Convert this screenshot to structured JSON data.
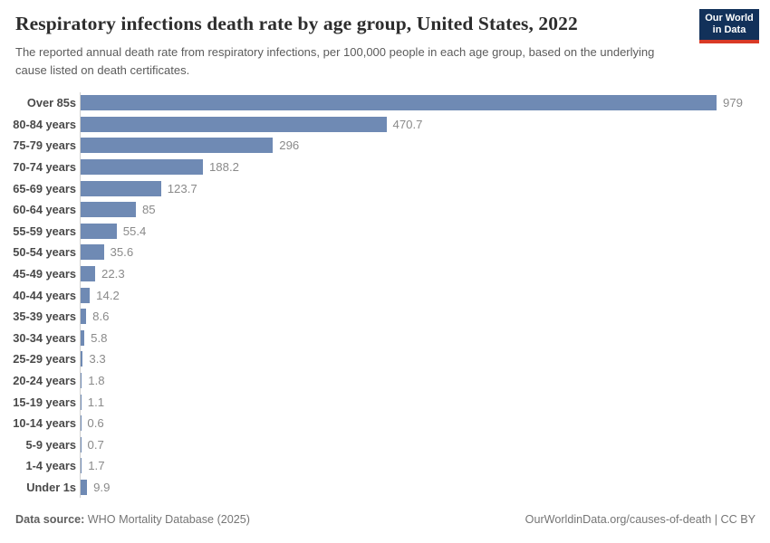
{
  "header": {
    "title": "Respiratory infections death rate by age group, United States, 2022",
    "subtitle": "The reported annual death rate from respiratory infections, per 100,000 people in each age group, based on the underlying cause listed on death certificates.",
    "logo": {
      "line1": "Our World",
      "line2": "in Data",
      "bg_color": "#12315a",
      "accent_color": "#d93a26"
    }
  },
  "chart_data": {
    "type": "bar",
    "orientation": "horizontal",
    "title": "Respiratory infections death rate by age group, United States, 2022",
    "xlabel": "",
    "ylabel": "Age group",
    "xlim": [
      0,
      979
    ],
    "grid": false,
    "legend": "none",
    "bar_color": "#6f8ab4",
    "axis_line_color": "#cfcfcf",
    "categories": [
      "Over 85s",
      "80-84 years",
      "75-79 years",
      "70-74 years",
      "65-69 years",
      "60-64 years",
      "55-59 years",
      "50-54 years",
      "45-49 years",
      "40-44 years",
      "35-39 years",
      "30-34 years",
      "25-29 years",
      "20-24 years",
      "15-19 years",
      "10-14 years",
      "5-9 years",
      "1-4 years",
      "Under 1s"
    ],
    "values": [
      979,
      470.7,
      296,
      188.2,
      123.7,
      85,
      55.4,
      35.6,
      22.3,
      14.2,
      8.6,
      5.8,
      3.3,
      1.8,
      1.1,
      0.6,
      0.7,
      1.7,
      9.9
    ],
    "value_labels": [
      "979",
      "470.7",
      "296",
      "188.2",
      "123.7",
      "85",
      "55.4",
      "35.6",
      "22.3",
      "14.2",
      "8.6",
      "5.8",
      "3.3",
      "1.8",
      "1.1",
      "0.6",
      "0.7",
      "1.7",
      "9.9"
    ]
  },
  "footer": {
    "datasource_label": "Data source:",
    "datasource_value": "WHO Mortality Database (2025)",
    "attribution": "OurWorldinData.org/causes-of-death | CC BY"
  }
}
